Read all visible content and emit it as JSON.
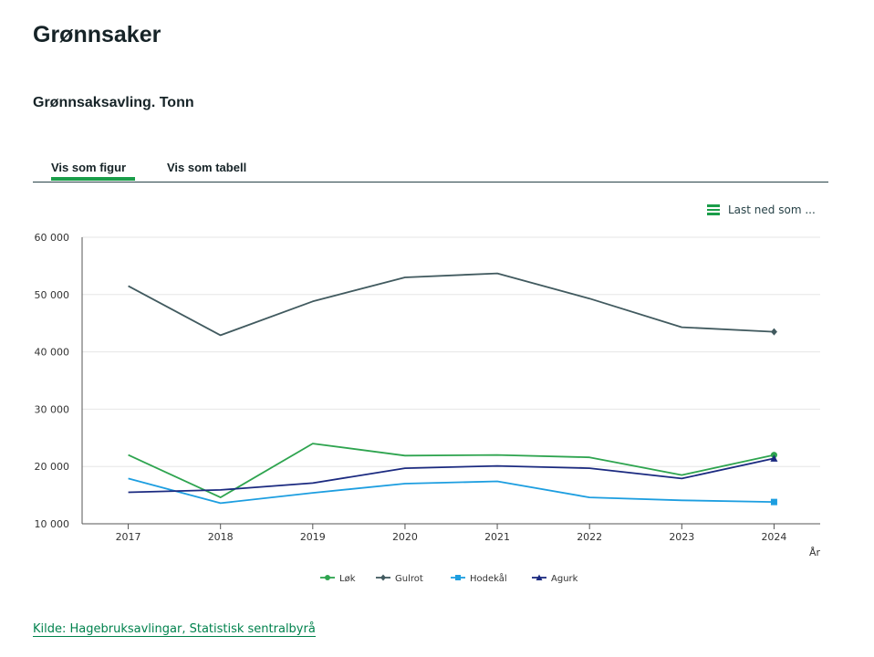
{
  "page": {
    "title": "Grønnsaker"
  },
  "chart_header": {
    "title": "Grønnsaksavling. Tonn"
  },
  "tabs": [
    {
      "label": "Vis som figur",
      "active": true
    },
    {
      "label": "Vis som tabell",
      "active": false
    }
  ],
  "download": {
    "label": "Last ned som ..."
  },
  "source": {
    "label": "Kilde: Hagebruksavlingar, Statistisk sentralbyrå"
  },
  "chart_data": {
    "type": "line",
    "title": "Grønnsaksavling. Tonn",
    "xlabel": "År",
    "ylabel": "",
    "ylim": [
      10000,
      60000
    ],
    "y_ticks": [
      10000,
      20000,
      30000,
      40000,
      50000,
      60000
    ],
    "y_tick_labels": [
      "10 000",
      "20 000",
      "30 000",
      "40 000",
      "50 000",
      "60 000"
    ],
    "categories": [
      "2017",
      "2018",
      "2019",
      "2020",
      "2021",
      "2022",
      "2023",
      "2024"
    ],
    "legend_position": "bottom-center",
    "series": [
      {
        "name": "Løk",
        "color": "#2ea44f",
        "marker": "circle",
        "values": [
          22000,
          14600,
          24000,
          21900,
          22000,
          21600,
          18500,
          22000
        ]
      },
      {
        "name": "Gulrot",
        "color": "#415a5f",
        "marker": "diamond",
        "values": [
          51500,
          42900,
          48800,
          53000,
          53700,
          49300,
          44300,
          43500
        ]
      },
      {
        "name": "Hodekål",
        "color": "#1d9ee0",
        "marker": "square",
        "values": [
          17900,
          13600,
          15400,
          17000,
          17400,
          14600,
          14100,
          13800
        ]
      },
      {
        "name": "Agurk",
        "color": "#1b2a80",
        "marker": "triangle",
        "values": [
          15500,
          15900,
          17100,
          19700,
          20100,
          19700,
          17900,
          21400
        ]
      }
    ]
  }
}
